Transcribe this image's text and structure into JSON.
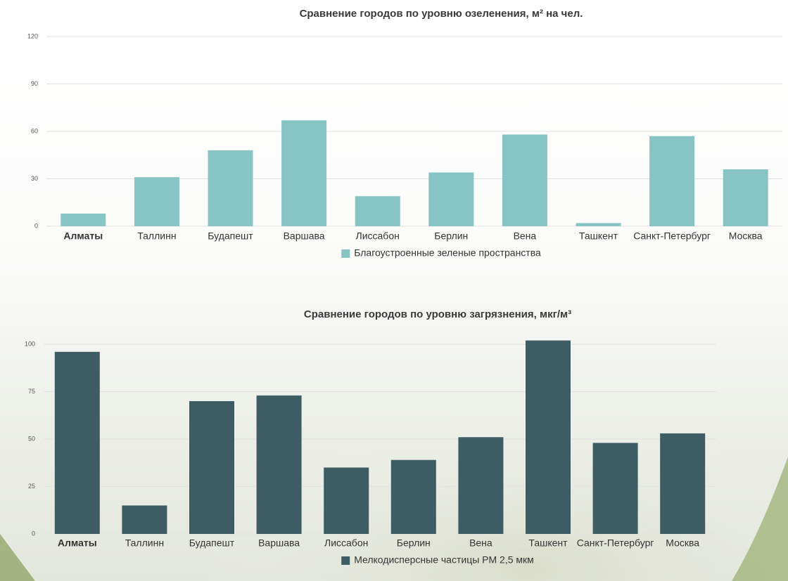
{
  "chart_data": [
    {
      "type": "bar",
      "title": "Сравнение городов по уровню озеленения, м² на чел.",
      "categories": [
        "Алматы",
        "Таллинн",
        "Будапешт",
        "Варшава",
        "Лиссабон",
        "Берлин",
        "Вена",
        "Ташкент",
        "Санкт-Петербург",
        "Москва"
      ],
      "series": [
        {
          "name": "Благоустроенные  зеленые пространства",
          "color": "#86c5c4",
          "values": [
            8,
            31,
            48,
            67,
            19,
            34,
            58,
            2,
            57,
            36
          ]
        }
      ],
      "ylim": [
        0,
        120
      ],
      "yticks": [
        0,
        30,
        60,
        90,
        120
      ],
      "grid": true
    },
    {
      "type": "bar",
      "title": "Сравнение городов по уровню загрязнения, мкг/м³",
      "categories": [
        "Алматы",
        "Таллинн",
        "Будапешт",
        "Варшава",
        "Лиссабон",
        "Берлин",
        "Вена",
        "Ташкент",
        "Санкт-Петербург",
        "Москва"
      ],
      "series": [
        {
          "name": "Мелкодисперсные частицы PM 2,5 мкм",
          "color": "#3d5c63",
          "values": [
            96,
            15,
            70,
            73,
            35,
            39,
            51,
            102,
            48,
            53
          ]
        }
      ],
      "ylim": [
        0,
        100
      ],
      "yticks": [
        0,
        25,
        50,
        75,
        100
      ],
      "grid": true
    }
  ]
}
